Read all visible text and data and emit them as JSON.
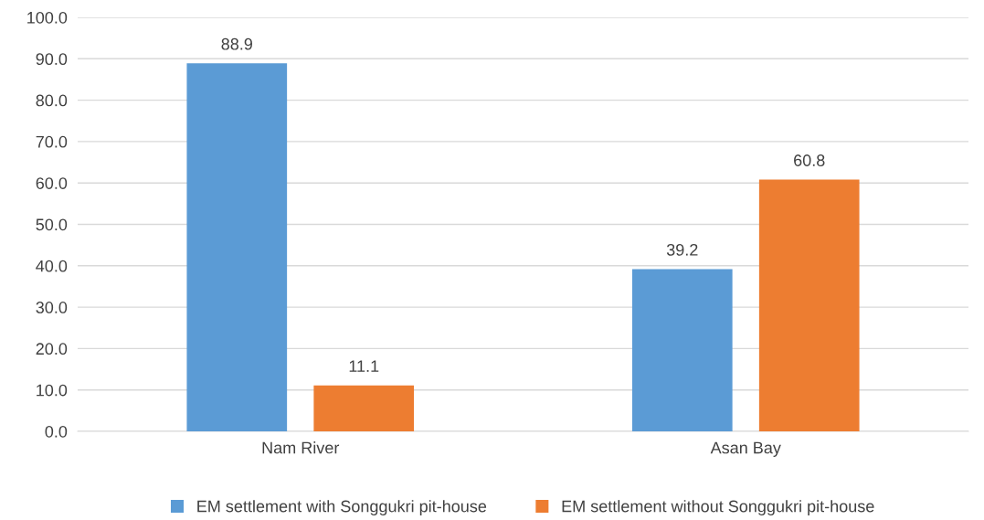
{
  "chart_data": {
    "type": "bar",
    "categories": [
      "Nam River",
      "Asan Bay"
    ],
    "series": [
      {
        "name": "EM settlement with Songgukri pit-house",
        "color": "#5b9bd5",
        "values": [
          88.9,
          39.2
        ]
      },
      {
        "name": "EM settlement without Songgukri pit-house",
        "color": "#ed7d31",
        "values": [
          11.1,
          60.8
        ]
      }
    ],
    "ylim": [
      0,
      100
    ],
    "yticks": [
      {
        "value": 0,
        "label": "0.0"
      },
      {
        "value": 10,
        "label": "10.0"
      },
      {
        "value": 20,
        "label": "20.0"
      },
      {
        "value": 30,
        "label": "30.0"
      },
      {
        "value": 40,
        "label": "40.0"
      },
      {
        "value": 50,
        "label": "50.0"
      },
      {
        "value": 60,
        "label": "60.0"
      },
      {
        "value": 70,
        "label": "70.0"
      },
      {
        "value": 80,
        "label": "80.0"
      },
      {
        "value": 90,
        "label": "90.0"
      },
      {
        "value": 100,
        "label": "100.0"
      }
    ],
    "grid": "y",
    "legend": "bottom",
    "data_labels": true
  }
}
